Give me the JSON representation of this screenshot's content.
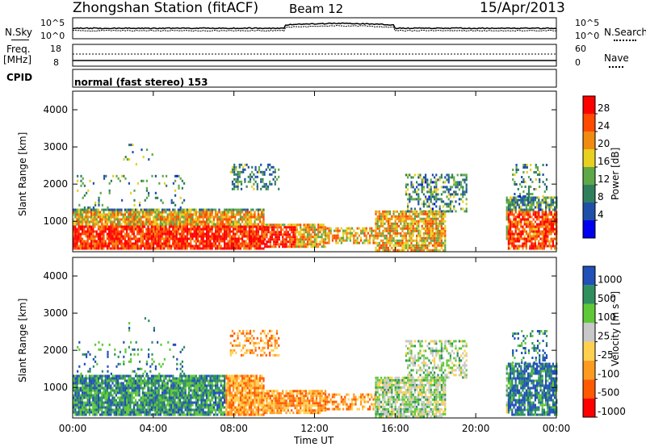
{
  "header": {
    "station_title": "Zhongshan Station (fitACF)",
    "beam_label": "Beam 12",
    "date_label": "15/Apr/2013"
  },
  "noise_panel": {
    "left_label": "N.Sky",
    "right_label": "N.Search",
    "left_ticks": [
      "10^5",
      "10^0"
    ],
    "right_ticks": [
      "10^5",
      "10^0"
    ]
  },
  "freq_panel": {
    "left_label_line1": "Freq.",
    "left_label_line2": "[MHz]",
    "right_label": "Nave",
    "left_ticks": [
      "18",
      "8"
    ],
    "right_ticks": [
      "60",
      "0"
    ]
  },
  "cpid_panel": {
    "label": "CPID",
    "value": "normal (fast stereo) 153"
  },
  "colors": {
    "power_scale": [
      "#0000ee",
      "#1f4fa8",
      "#2f7f5f",
      "#5fa848",
      "#e8d020",
      "#f08a10",
      "#ff4a00",
      "#ff0000"
    ],
    "velocity_scale": [
      "#ff0000",
      "#ff5a00",
      "#ff9a20",
      "#ffd050",
      "#c8c8c8",
      "#5fc838",
      "#2f8f5f",
      "#2050b8"
    ]
  },
  "chart_data": [
    {
      "type": "heatmap",
      "title": "",
      "ylabel": "Slant Range [km]",
      "xlabel": "",
      "xlim": [
        "00:00",
        "00:00"
      ],
      "ylim": [
        180,
        4500
      ],
      "y_ticks": [
        "1000",
        "2000",
        "3000",
        "4000"
      ],
      "x_ticks": [
        "00:00",
        "04:00",
        "08:00",
        "12:00",
        "16:00",
        "20:00",
        "00:00"
      ],
      "colorbar_label": "Power [dB]",
      "colorbar_ticks": [
        "4",
        "8",
        "12",
        "16",
        "20",
        "24",
        "28"
      ],
      "colorbar_range": [
        0,
        32
      ]
    },
    {
      "type": "heatmap",
      "title": "",
      "ylabel": "Slant Range [km]",
      "xlabel": "Time UT",
      "xlim": [
        "00:00",
        "00:00"
      ],
      "ylim": [
        180,
        4500
      ],
      "y_ticks": [
        "1000",
        "2000",
        "3000",
        "4000"
      ],
      "x_ticks": [
        "00:00",
        "04:00",
        "08:00",
        "12:00",
        "16:00",
        "20:00",
        "00:00"
      ],
      "colorbar_label": "Velocity [m s⁻¹]",
      "colorbar_ticks": [
        "1000",
        "500",
        "100",
        "25",
        "-25",
        "-100",
        "-500",
        "-1000"
      ]
    }
  ]
}
